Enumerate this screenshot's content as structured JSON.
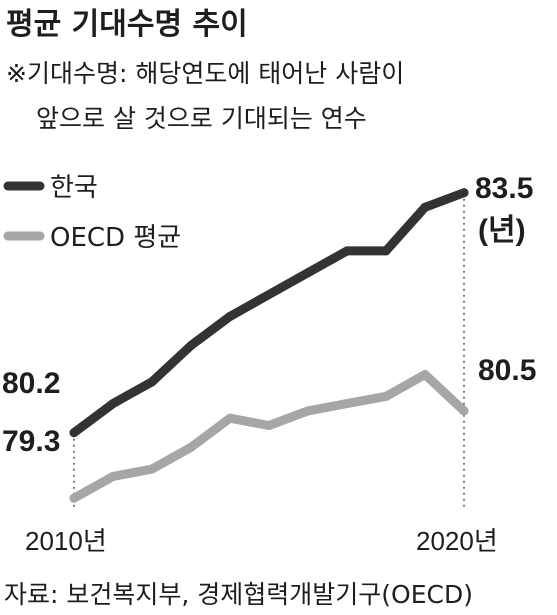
{
  "title": "평균 기대수명 추이",
  "subtitle_lines": [
    "※기대수명: 해당연도에 태어난 사람이",
    "앞으로 살 것으로 기대되는 연수"
  ],
  "unit_label": "(년)",
  "source": "자료: 보건복지부, 경제협력개발기구(OECD)",
  "colors": {
    "korea": "#333333",
    "oecd": "#a6a6a6",
    "text": "#1e1e1e"
  },
  "chart_data": {
    "type": "line",
    "x": [
      2010,
      2011,
      2012,
      2013,
      2014,
      2015,
      2016,
      2017,
      2018,
      2019,
      2020
    ],
    "xtick_labels": [
      "2010년",
      "2020년"
    ],
    "series": [
      {
        "name": "한국",
        "values": [
          80.2,
          80.6,
          80.9,
          81.4,
          81.8,
          82.1,
          82.4,
          82.7,
          82.7,
          83.3,
          83.5
        ],
        "start_label": "80.2",
        "end_label": "83.5"
      },
      {
        "name": "OECD 평균",
        "values": [
          79.3,
          79.6,
          79.7,
          80.0,
          80.4,
          80.3,
          80.5,
          80.6,
          80.7,
          81.0,
          80.5
        ],
        "start_label": "79.3",
        "end_label": "80.5"
      }
    ],
    "ylim": [
      79.0,
      84.5
    ],
    "grid": false,
    "legend_position": "top-left"
  }
}
